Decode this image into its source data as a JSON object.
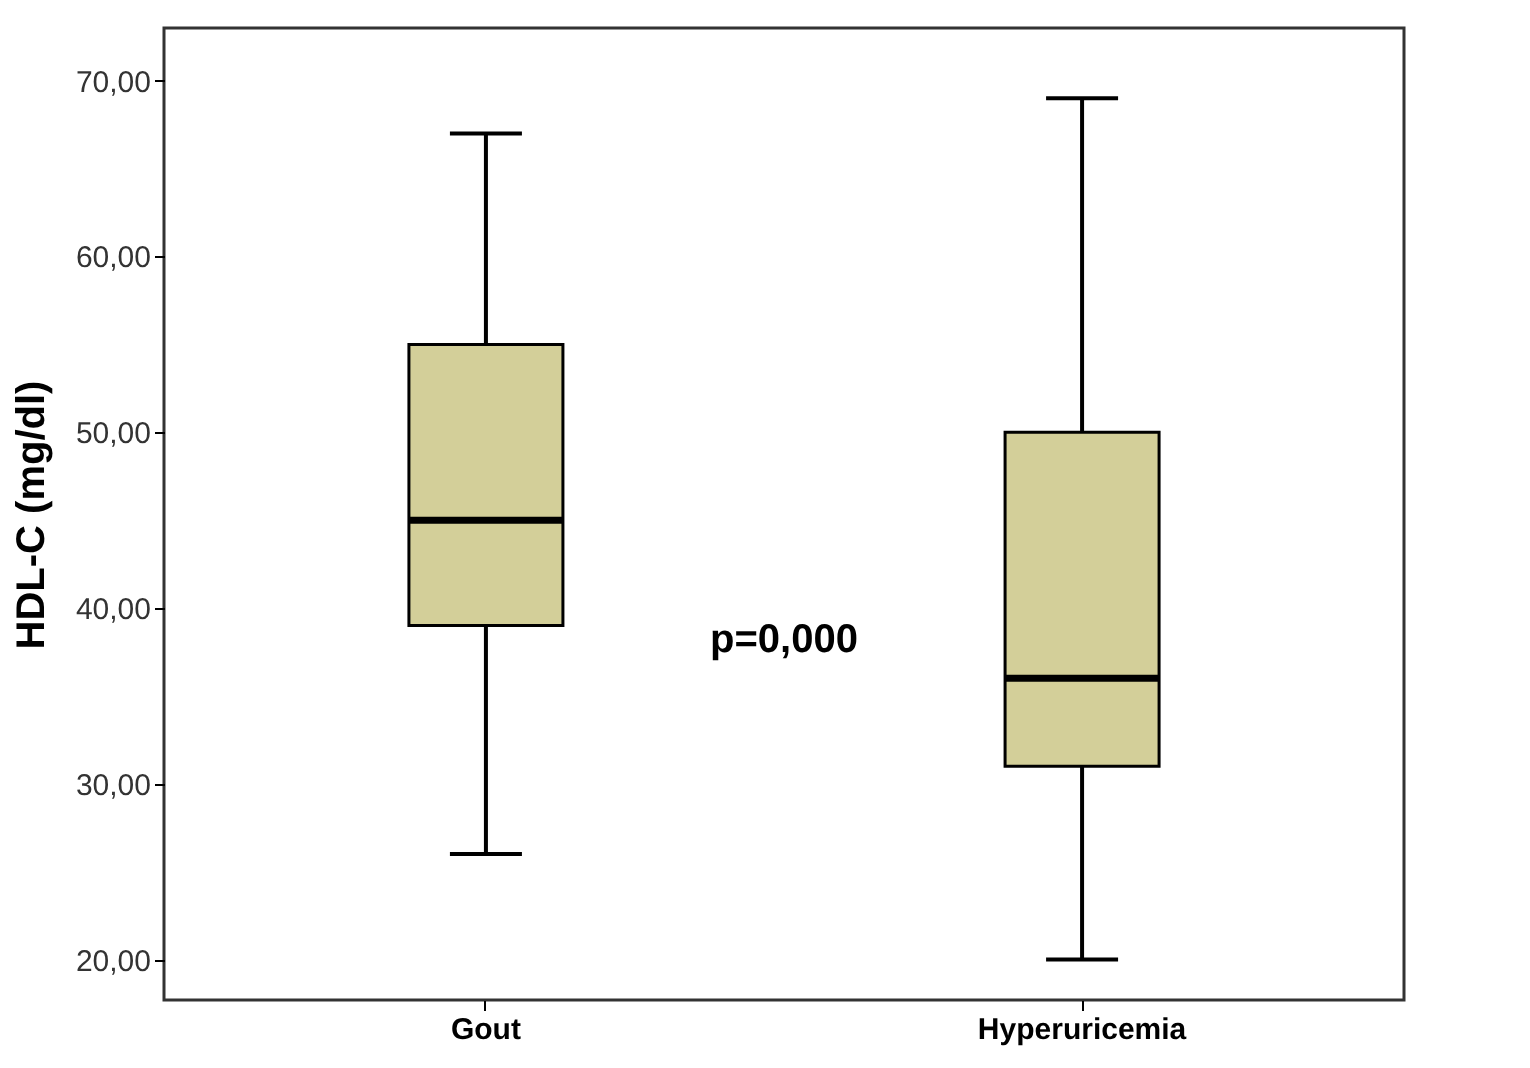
{
  "chart_data": {
    "type": "box",
    "ylabel": "HDL-C (mg/dl)",
    "categories": [
      "Gout",
      "Hyperuricemia"
    ],
    "series": [
      {
        "color": "#d3cf99",
        "boxes": [
          {
            "low": 26,
            "q1": 39,
            "median": 45,
            "q3": 55,
            "high": 67
          },
          {
            "low": 20,
            "q1": 31,
            "median": 36,
            "q3": 50,
            "high": 69
          }
        ]
      }
    ],
    "ylim": [
      17.7,
      73
    ],
    "yticks": [
      {
        "value": 20,
        "label": "20,00"
      },
      {
        "value": 30,
        "label": "30,00"
      },
      {
        "value": 40,
        "label": "40,00"
      },
      {
        "value": 50,
        "label": "50,00"
      },
      {
        "value": 60,
        "label": "60,00"
      },
      {
        "value": 70,
        "label": "70,00"
      }
    ],
    "annotations": [
      "p=0,000"
    ],
    "grid": false
  }
}
